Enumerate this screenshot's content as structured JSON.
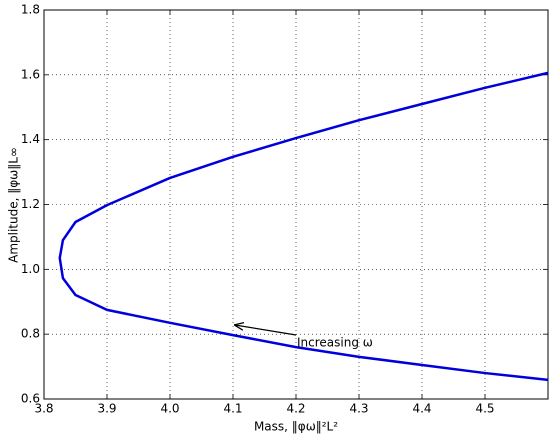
{
  "chart_data": {
    "type": "line",
    "x_label": "Mass, ‖φω‖²L²",
    "y_label": "Amplitude, ‖φω‖L∞",
    "annotation": "Increasing ω",
    "series": [
      {
        "color": "#0000dd",
        "x": [
          4.6,
          4.5,
          4.4,
          4.3,
          4.2,
          4.1,
          4.0,
          3.9,
          3.85,
          3.83,
          3.825,
          3.83,
          3.85,
          3.9,
          4.0,
          4.1,
          4.2,
          4.3,
          4.4,
          4.5,
          4.6
        ],
        "values": [
          1.606,
          1.56,
          1.51,
          1.46,
          1.405,
          1.347,
          1.282,
          1.198,
          1.146,
          1.09,
          1.035,
          0.973,
          0.921,
          0.875,
          0.835,
          0.797,
          0.76,
          0.73,
          0.705,
          0.68,
          0.659
        ]
      }
    ],
    "xlim": [
      3.8,
      4.6
    ],
    "xticks": [
      3.8,
      3.9,
      {
        "value": 4.0,
        "label": "4.0"
      },
      4.1,
      4.2,
      4.3,
      4.4,
      4.5
    ],
    "ylim": [
      0.6,
      1.8
    ],
    "yticks": [
      0.6,
      0.8,
      {
        "value": 1.0,
        "label": "1.0"
      },
      1.2,
      1.4,
      1.6,
      1.8
    ],
    "grid": true
  }
}
